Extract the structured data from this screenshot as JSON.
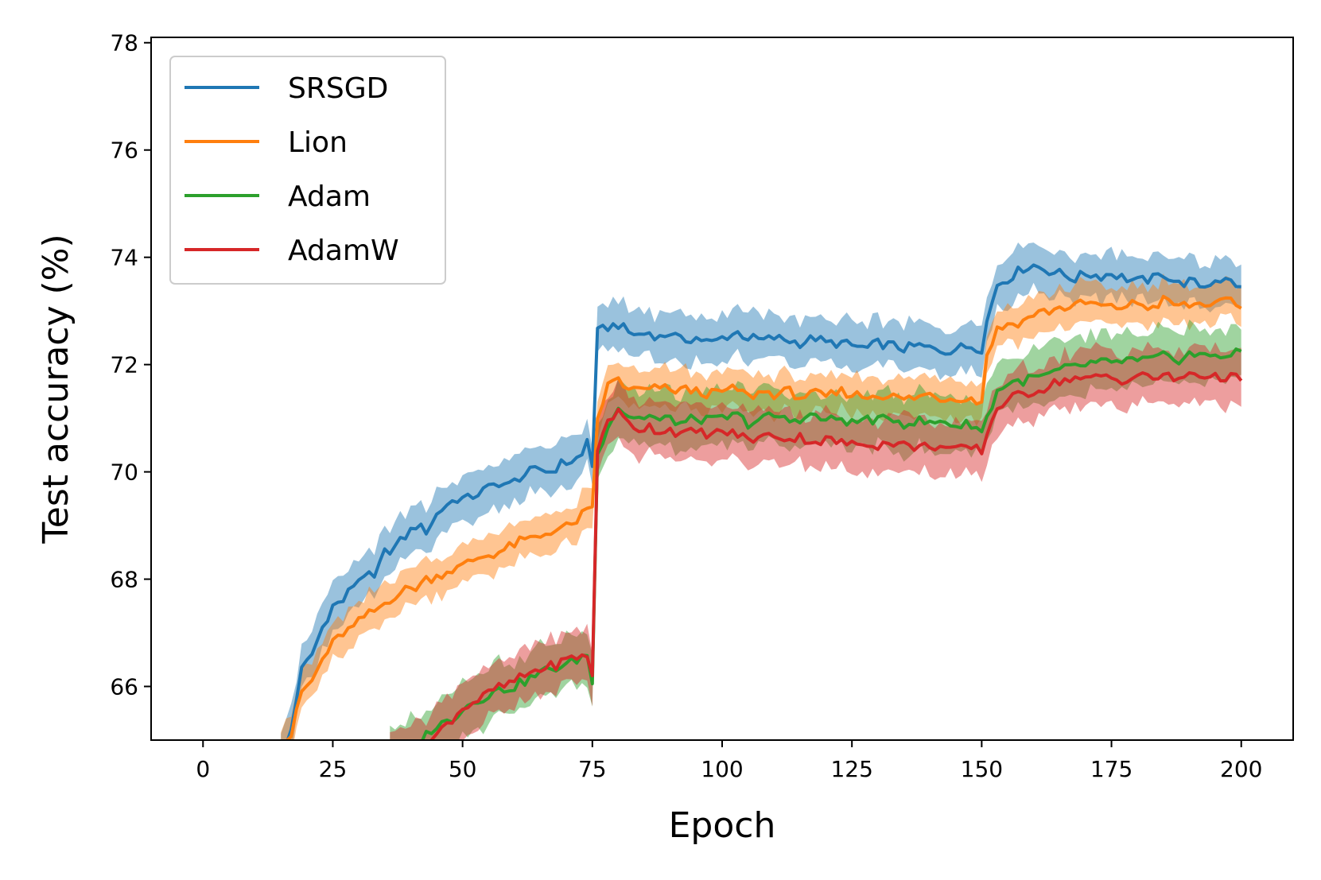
{
  "chart_data": {
    "type": "line",
    "title": "",
    "xlabel": "Epoch",
    "ylabel": "Test accuracy (%)",
    "xlim": [
      -10,
      210
    ],
    "ylim": [
      65,
      78.1
    ],
    "xticks": [
      0,
      25,
      50,
      75,
      100,
      125,
      150,
      175,
      200
    ],
    "yticks": [
      66,
      68,
      70,
      72,
      74,
      76,
      78
    ],
    "grid": false,
    "legend_position": "upper-left",
    "series": [
      {
        "name": "SRSGD",
        "color": "#1f77b4",
        "band": 0.42,
        "x": [
          15,
          17,
          19,
          21,
          23,
          25,
          27,
          29,
          31,
          33,
          35,
          37,
          39,
          41,
          43,
          45,
          47,
          49,
          51,
          53,
          55,
          57,
          59,
          61,
          63,
          65,
          67,
          69,
          71,
          73,
          74,
          75,
          76,
          78,
          80,
          82,
          84,
          86,
          88,
          90,
          92,
          95,
          98,
          100,
          103,
          105,
          108,
          110,
          113,
          115,
          118,
          120,
          123,
          125,
          128,
          130,
          133,
          135,
          138,
          140,
          143,
          145,
          148,
          150,
          151,
          153,
          155,
          158,
          160,
          163,
          165,
          168,
          170,
          173,
          175,
          178,
          180,
          183,
          185,
          188,
          190,
          193,
          195,
          198,
          200
        ],
        "y": [
          64.6,
          65.2,
          66.3,
          66.6,
          67.1,
          67.5,
          67.6,
          67.9,
          68.1,
          68.0,
          68.5,
          68.6,
          68.8,
          69.0,
          68.9,
          69.2,
          69.4,
          69.5,
          69.5,
          69.6,
          69.7,
          69.8,
          69.75,
          69.9,
          70.0,
          70.05,
          70.0,
          70.15,
          70.2,
          70.3,
          70.6,
          70.1,
          72.6,
          72.7,
          72.75,
          72.6,
          72.55,
          72.6,
          72.5,
          72.6,
          72.45,
          72.5,
          72.4,
          72.5,
          72.6,
          72.5,
          72.45,
          72.5,
          72.45,
          72.4,
          72.5,
          72.4,
          72.4,
          72.35,
          72.3,
          72.4,
          72.35,
          72.3,
          72.35,
          72.3,
          72.25,
          72.3,
          72.35,
          72.3,
          72.8,
          73.5,
          73.6,
          73.8,
          73.85,
          73.75,
          73.7,
          73.6,
          73.7,
          73.65,
          73.7,
          73.6,
          73.55,
          73.6,
          73.7,
          73.5,
          73.55,
          73.45,
          73.6,
          73.55,
          73.45
        ]
      },
      {
        "name": "Lion",
        "color": "#ff7f0e",
        "band": 0.35,
        "x": [
          15,
          17,
          19,
          21,
          23,
          25,
          27,
          29,
          31,
          33,
          35,
          37,
          39,
          41,
          43,
          45,
          47,
          49,
          51,
          53,
          55,
          57,
          59,
          61,
          63,
          65,
          67,
          69,
          71,
          73,
          74,
          75,
          76,
          78,
          80,
          82,
          84,
          86,
          88,
          90,
          92,
          95,
          98,
          100,
          103,
          105,
          108,
          110,
          113,
          115,
          118,
          120,
          123,
          125,
          128,
          130,
          133,
          135,
          138,
          140,
          143,
          145,
          148,
          150,
          151,
          153,
          155,
          158,
          160,
          163,
          165,
          168,
          170,
          173,
          175,
          178,
          180,
          183,
          185,
          188,
          190,
          193,
          195,
          198,
          200
        ],
        "y": [
          64.9,
          65.1,
          65.9,
          66.1,
          66.5,
          66.8,
          67.0,
          67.1,
          67.3,
          67.4,
          67.55,
          67.7,
          67.8,
          67.85,
          68.0,
          68.05,
          68.15,
          68.2,
          68.3,
          68.4,
          68.45,
          68.5,
          68.6,
          68.7,
          68.75,
          68.8,
          68.9,
          68.95,
          69.0,
          69.2,
          69.25,
          69.35,
          71.0,
          71.6,
          71.75,
          71.5,
          71.55,
          71.5,
          71.6,
          71.5,
          71.55,
          71.5,
          71.45,
          71.5,
          71.55,
          71.4,
          71.5,
          71.45,
          71.5,
          71.4,
          71.45,
          71.4,
          71.5,
          71.45,
          71.4,
          71.45,
          71.4,
          71.35,
          71.4,
          71.45,
          71.35,
          71.4,
          71.35,
          71.3,
          72.2,
          72.65,
          72.75,
          72.8,
          72.95,
          73.0,
          73.05,
          73.1,
          73.15,
          73.1,
          73.05,
          73.1,
          73.15,
          73.05,
          73.2,
          73.1,
          73.1,
          73.15,
          73.1,
          73.2,
          73.05
        ]
      },
      {
        "name": "Adam",
        "color": "#2ca02c",
        "band": 0.5,
        "x": [
          36,
          38,
          40,
          42,
          44,
          46,
          48,
          50,
          52,
          54,
          56,
          58,
          60,
          62,
          64,
          66,
          68,
          70,
          72,
          74,
          75,
          76,
          78,
          80,
          82,
          84,
          86,
          88,
          90,
          92,
          95,
          98,
          100,
          103,
          105,
          108,
          110,
          113,
          115,
          118,
          120,
          123,
          125,
          128,
          130,
          133,
          135,
          138,
          140,
          143,
          145,
          148,
          150,
          151,
          153,
          155,
          158,
          160,
          163,
          165,
          168,
          170,
          173,
          175,
          178,
          180,
          183,
          185,
          188,
          190,
          193,
          195,
          198,
          200
        ],
        "y": [
          64.7,
          64.8,
          64.9,
          65.0,
          65.2,
          65.3,
          65.4,
          65.6,
          65.7,
          65.8,
          65.9,
          65.95,
          66.0,
          66.1,
          66.2,
          66.3,
          66.35,
          66.4,
          66.5,
          66.6,
          66.05,
          70.3,
          70.9,
          71.2,
          71.05,
          71.0,
          71.05,
          70.95,
          71.0,
          70.9,
          71.0,
          70.95,
          71.0,
          71.05,
          70.9,
          71.0,
          71.05,
          70.95,
          71.0,
          71.05,
          70.95,
          71.0,
          70.9,
          71.0,
          70.95,
          71.0,
          70.9,
          70.95,
          70.9,
          70.95,
          70.85,
          70.9,
          70.75,
          71.0,
          71.5,
          71.65,
          71.7,
          71.75,
          71.8,
          71.9,
          71.95,
          72.0,
          72.05,
          72.0,
          72.1,
          72.05,
          72.1,
          72.15,
          72.1,
          72.2,
          72.15,
          72.2,
          72.15,
          72.25
        ]
      },
      {
        "name": "AdamW",
        "color": "#d62728",
        "band": 0.5,
        "x": [
          36,
          38,
          40,
          42,
          44,
          46,
          48,
          50,
          52,
          54,
          56,
          58,
          60,
          62,
          64,
          66,
          68,
          70,
          72,
          74,
          75,
          76,
          78,
          80,
          82,
          84,
          86,
          88,
          90,
          92,
          95,
          98,
          100,
          103,
          105,
          108,
          110,
          113,
          115,
          118,
          120,
          123,
          125,
          128,
          130,
          133,
          135,
          138,
          140,
          143,
          145,
          148,
          150,
          151,
          153,
          155,
          158,
          160,
          163,
          165,
          168,
          170,
          173,
          175,
          178,
          180,
          183,
          185,
          188,
          190,
          193,
          195,
          198,
          200
        ],
        "y": [
          64.6,
          64.7,
          64.8,
          64.9,
          65.0,
          65.2,
          65.4,
          65.6,
          65.7,
          65.8,
          65.95,
          66.0,
          66.1,
          66.2,
          66.3,
          66.35,
          66.4,
          66.5,
          66.55,
          66.6,
          66.2,
          70.4,
          71.0,
          71.1,
          70.9,
          70.8,
          70.85,
          70.75,
          70.8,
          70.7,
          70.75,
          70.7,
          70.75,
          70.7,
          70.6,
          70.65,
          70.7,
          70.6,
          70.65,
          70.55,
          70.6,
          70.55,
          70.5,
          70.55,
          70.5,
          70.55,
          70.5,
          70.45,
          70.5,
          70.45,
          70.4,
          70.45,
          70.4,
          70.7,
          71.2,
          71.35,
          71.45,
          71.5,
          71.6,
          71.7,
          71.75,
          71.7,
          71.8,
          71.75,
          71.7,
          71.8,
          71.75,
          71.8,
          71.7,
          71.85,
          71.8,
          71.75,
          71.8,
          71.7
        ]
      }
    ]
  }
}
